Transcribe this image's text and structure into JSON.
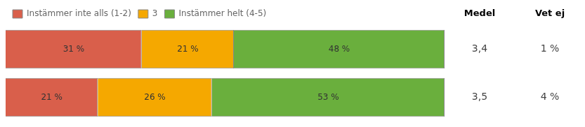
{
  "chart_data": {
    "type": "bar",
    "orientation": "horizontal",
    "stacked": true,
    "categories": [
      null,
      null
    ],
    "series": [
      {
        "name": "Instämmer inte alls (1-2)",
        "color": "#D95F4B",
        "values": [
          31,
          21
        ],
        "value_labels": [
          "31 %",
          "21 %"
        ]
      },
      {
        "name": "3",
        "color": "#F5A800",
        "values": [
          21,
          26
        ],
        "value_labels": [
          "21 %",
          "26 %"
        ]
      },
      {
        "name": "Instämmer helt (4-5)",
        "color": "#6AAF3D",
        "values": [
          48,
          53
        ],
        "value_labels": [
          "48 %",
          "53 %"
        ]
      }
    ],
    "xlim": [
      0,
      100
    ],
    "data_labels": true,
    "tick_labels": false,
    "grid": false,
    "legend": "upper left",
    "annotations": [
      {
        "header": "Medel",
        "values": [
          "3,4",
          "3,5"
        ]
      },
      {
        "header": "Vet ej",
        "values": [
          "1 %",
          "4 %"
        ]
      }
    ]
  }
}
